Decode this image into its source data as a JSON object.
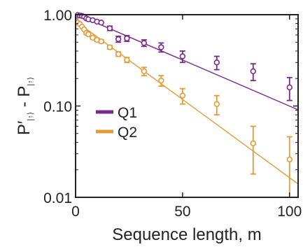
{
  "chart_data": {
    "type": "scatter",
    "xlabel": "Sequence length, m",
    "ylabel": {
      "main": "P′",
      "sub1": "|↑⟩",
      "mid": " - P",
      "sub2": "|↑⟩"
    },
    "xlim": [
      0,
      104
    ],
    "ylim": [
      0.01,
      1.0
    ],
    "yscale": "log",
    "xticks": [
      {
        "value": 0,
        "label": "0"
      },
      {
        "value": 50,
        "label": "50"
      },
      {
        "value": 100,
        "label": "100"
      }
    ],
    "yticks": [
      {
        "value": 1.0,
        "label": "1.00"
      },
      {
        "value": 0.1,
        "label": "0.10"
      },
      {
        "value": 0.01,
        "label": "0.01"
      }
    ],
    "legend_position": "middle-left",
    "series": [
      {
        "name": "Q1",
        "color": "#7a2a8e",
        "points": [
          {
            "x": 1,
            "y": 0.99,
            "err": 0.02
          },
          {
            "x": 2,
            "y": 0.98,
            "err": 0.02
          },
          {
            "x": 3,
            "y": 0.97,
            "err": 0.02
          },
          {
            "x": 4,
            "y": 0.95,
            "err": 0.02
          },
          {
            "x": 5,
            "y": 0.91,
            "err": 0.02
          },
          {
            "x": 6,
            "y": 0.89,
            "err": 0.02
          },
          {
            "x": 8,
            "y": 0.87,
            "err": 0.02
          },
          {
            "x": 10,
            "y": 0.84,
            "err": 0.02
          },
          {
            "x": 12,
            "y": 0.82,
            "err": 0.02
          },
          {
            "x": 16,
            "y": 0.71,
            "err": 0.04
          },
          {
            "x": 20,
            "y": 0.54,
            "err": 0.04
          },
          {
            "x": 24,
            "y": 0.55,
            "err": 0.04
          },
          {
            "x": 32,
            "y": 0.49,
            "err": 0.04
          },
          {
            "x": 40,
            "y": 0.44,
            "err": 0.05
          },
          {
            "x": 50,
            "y": 0.35,
            "err": 0.05
          },
          {
            "x": 66,
            "y": 0.3,
            "err": 0.05
          },
          {
            "x": 83,
            "y": 0.24,
            "err": 0.05
          },
          {
            "x": 100,
            "y": 0.16,
            "err": 0.045
          }
        ],
        "fit": {
          "x": [
            0,
            104
          ],
          "y": [
            1.02,
            0.091
          ]
        }
      },
      {
        "name": "Q2",
        "color": "#e69a36",
        "points": [
          {
            "x": 1,
            "y": 0.82,
            "err": 0.02
          },
          {
            "x": 2,
            "y": 0.79,
            "err": 0.02
          },
          {
            "x": 3,
            "y": 0.74,
            "err": 0.02
          },
          {
            "x": 4,
            "y": 0.69,
            "err": 0.02
          },
          {
            "x": 5,
            "y": 0.63,
            "err": 0.02
          },
          {
            "x": 6,
            "y": 0.61,
            "err": 0.02
          },
          {
            "x": 8,
            "y": 0.56,
            "err": 0.02
          },
          {
            "x": 10,
            "y": 0.53,
            "err": 0.02
          },
          {
            "x": 12,
            "y": 0.51,
            "err": 0.02
          },
          {
            "x": 16,
            "y": 0.44,
            "err": 0.02
          },
          {
            "x": 20,
            "y": 0.37,
            "err": 0.02
          },
          {
            "x": 24,
            "y": 0.32,
            "err": 0.02
          },
          {
            "x": 32,
            "y": 0.24,
            "err": 0.025
          },
          {
            "x": 40,
            "y": 0.19,
            "err": 0.025
          },
          {
            "x": 50,
            "y": 0.13,
            "err": 0.025
          },
          {
            "x": 66,
            "y": 0.105,
            "err": 0.025
          },
          {
            "x": 83,
            "y": 0.039,
            "err": 0.021
          },
          {
            "x": 100,
            "y": 0.026,
            "err": 0.02
          }
        ],
        "fit": {
          "x": [
            0,
            104
          ],
          "y": [
            0.85,
            0.014
          ]
        }
      }
    ]
  }
}
